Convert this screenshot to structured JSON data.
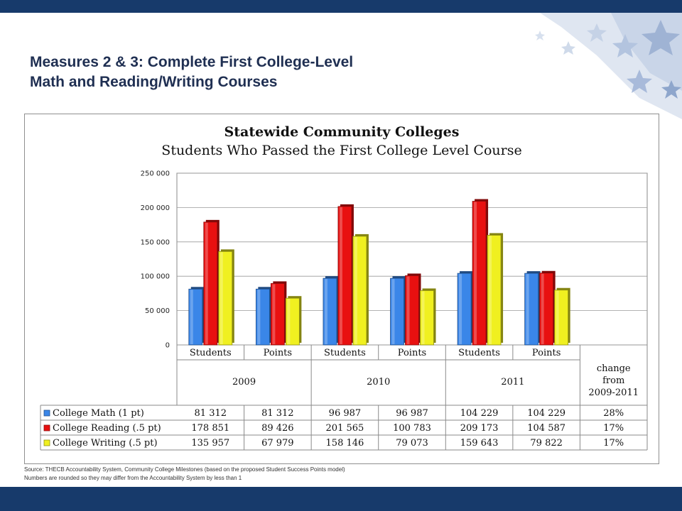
{
  "slide": {
    "title_line1": "Measures 2 & 3:  Complete First College-Level",
    "title_line2": "Math and Reading/Writing Courses",
    "source_line1": "Source:  THECB Accountability System, Community College Milestones (based on the proposed Student Success Points model)",
    "source_line2": "Numbers are rounded so they may differ from the Accountability System by less than 1",
    "colors": {
      "banner": "#173a6b",
      "title": "#1f2f52"
    }
  },
  "chart_data": {
    "type": "bar",
    "title": "Statewide Community Colleges",
    "subtitle": "Students Who Passed the First College Level Course",
    "xlabel": "",
    "ylabel": "",
    "ylim": [
      0,
      250000
    ],
    "yticks": [
      "250 000",
      "200 000",
      "150 000",
      "100 000",
      "50 000",
      "0"
    ],
    "ytick_values": [
      250000,
      200000,
      150000,
      100000,
      50000,
      0
    ],
    "grid": true,
    "legend": "table-left",
    "categories": [
      "Students",
      "Points",
      "Students",
      "Points",
      "Students",
      "Points"
    ],
    "groups": [
      "2009",
      "2010",
      "2011"
    ],
    "extra_column": "change from 2009-2011",
    "extra_column_lines": [
      "change",
      "from",
      "2009-2011"
    ],
    "series": [
      {
        "name": "College Math (1 pt)",
        "color": "#3a86e8",
        "values": [
          81312,
          81312,
          96987,
          96987,
          104229,
          104229
        ],
        "labels": [
          "81 312",
          "81 312",
          "96 987",
          "96 987",
          "104 229",
          "104 229"
        ],
        "change": "28%"
      },
      {
        "name": "College Reading (.5 pt)",
        "color": "#e81010",
        "values": [
          178851,
          89426,
          201565,
          100783,
          209173,
          104587
        ],
        "labels": [
          "178 851",
          "89 426",
          "201 565",
          "100 783",
          "209 173",
          "104 587"
        ],
        "change": "17%"
      },
      {
        "name": "College Writing (.5 pt)",
        "color": "#f0f020",
        "values": [
          135957,
          67979,
          158146,
          79073,
          159643,
          79822
        ],
        "labels": [
          "135 957",
          "67 979",
          "158 146",
          "79 073",
          "159 643",
          "79 822"
        ],
        "change": "17%"
      }
    ]
  }
}
